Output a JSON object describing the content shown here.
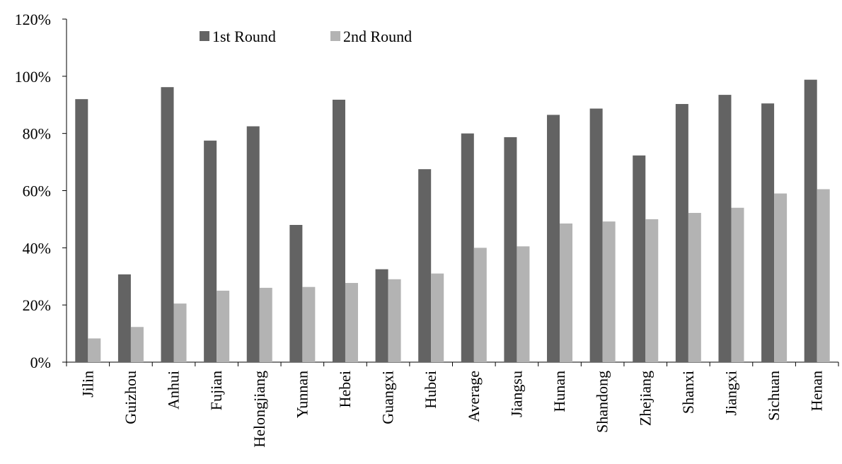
{
  "chart_data": {
    "type": "bar",
    "title": "",
    "xlabel": "",
    "ylabel": "",
    "ylim": [
      0,
      1.2
    ],
    "yticks": [
      {
        "value": 0,
        "label": "0%"
      },
      {
        "value": 0.2,
        "label": "20%"
      },
      {
        "value": 0.4,
        "label": "40%"
      },
      {
        "value": 0.6,
        "label": "60%"
      },
      {
        "value": 0.8,
        "label": "80%"
      },
      {
        "value": 1.0,
        "label": "100%"
      },
      {
        "value": 1.2,
        "label": "120%"
      }
    ],
    "grid": false,
    "legend_position": "top-left",
    "categories": [
      "Jilin",
      "Guizhou",
      "Anhui",
      "Fujian",
      "Helongjiang",
      "Yunnan",
      "Hebei",
      "Guangxi",
      "Hubei",
      "Average",
      "Jiangsu",
      "Hunan",
      "Shandong",
      "Zhejiang",
      "Shanxi",
      "Jiangxi",
      "Sichuan",
      "Henan"
    ],
    "series": [
      {
        "name": "1st Round",
        "color": "#636363",
        "values": [
          0.92,
          0.307,
          0.962,
          0.775,
          0.825,
          0.48,
          0.918,
          0.325,
          0.675,
          0.8,
          0.787,
          0.865,
          0.887,
          0.723,
          0.903,
          0.935,
          0.905,
          0.988
        ]
      },
      {
        "name": "2nd Round",
        "color": "#b3b3b3",
        "values": [
          0.083,
          0.123,
          0.205,
          0.25,
          0.26,
          0.263,
          0.277,
          0.29,
          0.31,
          0.4,
          0.405,
          0.485,
          0.492,
          0.5,
          0.522,
          0.54,
          0.59,
          0.605
        ]
      }
    ]
  }
}
